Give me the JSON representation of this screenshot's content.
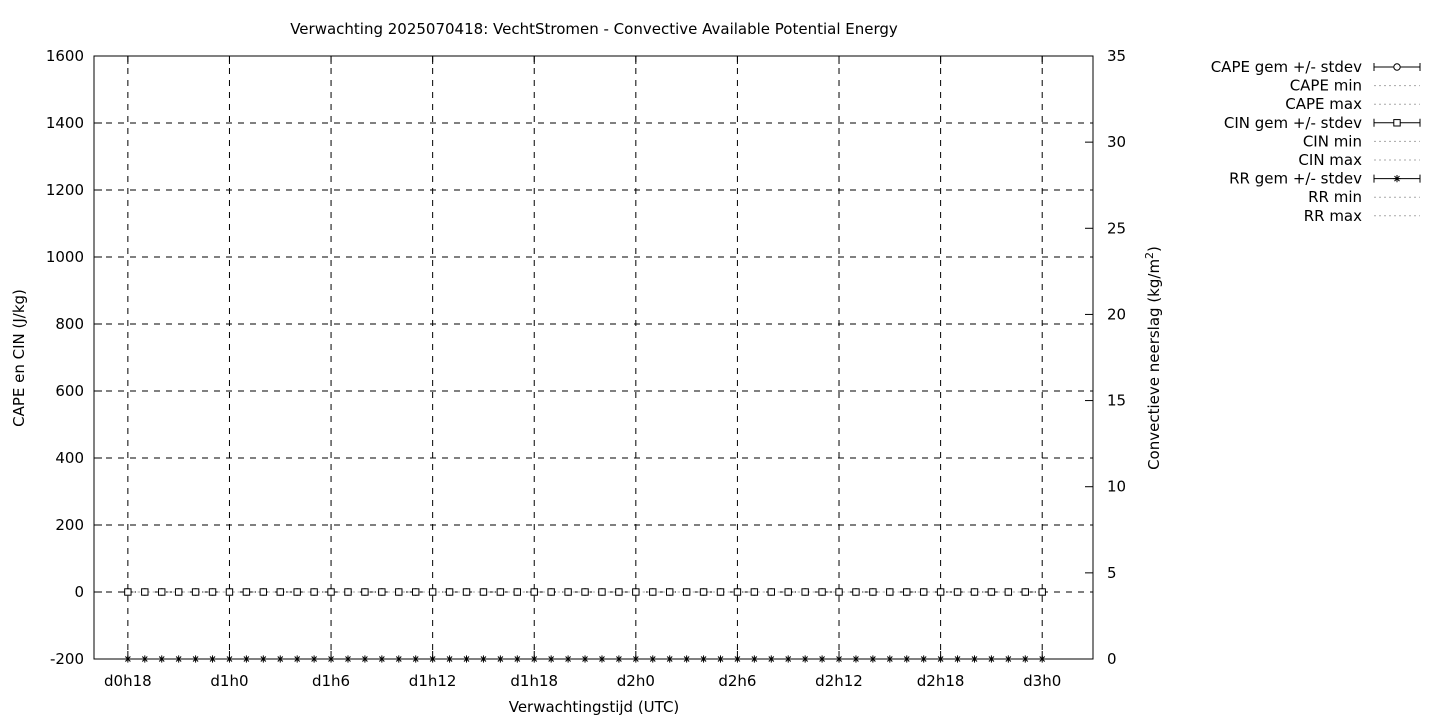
{
  "chart_data": {
    "type": "line",
    "title": "Verwachting 2025070418: VechtStromen - Convective Available Potential Energy",
    "xlabel": "Verwachtingstijd (UTC)",
    "ylabel": "CAPE en CIN (J/kg)",
    "y2label": "Convectieve neerslag (kg/m",
    "y2label_sup": "2",
    "y2label_end": ")",
    "x_ticks": [
      "d0h18",
      "d1h0",
      "d1h6",
      "d1h12",
      "d1h18",
      "d2h0",
      "d2h6",
      "d2h12",
      "d2h18",
      "d3h0"
    ],
    "x_range_hours": [
      -2,
      57
    ],
    "ylim": [
      -200,
      1600
    ],
    "y_ticks": [
      -200,
      0,
      200,
      400,
      600,
      800,
      1000,
      1200,
      1400,
      1600
    ],
    "y2lim": [
      0,
      35
    ],
    "y2_ticks": [
      0,
      5,
      10,
      15,
      20,
      25,
      30,
      35
    ],
    "grid": true,
    "legend_position": "top-right outside",
    "legend": [
      {
        "label": "CAPE gem +/- stdev",
        "marker": "circle",
        "errorbar": true
      },
      {
        "label": "CAPE min",
        "marker": "none",
        "errorbar": false
      },
      {
        "label": "CAPE max",
        "marker": "none",
        "errorbar": false
      },
      {
        "label": "CIN gem +/- stdev",
        "marker": "square",
        "errorbar": true
      },
      {
        "label": "CIN min",
        "marker": "none",
        "errorbar": false
      },
      {
        "label": "CIN max",
        "marker": "none",
        "errorbar": false
      },
      {
        "label": "RR gem +/- stdev",
        "marker": "star",
        "errorbar": true
      },
      {
        "label": "RR min",
        "marker": "none",
        "errorbar": false
      },
      {
        "label": "RR max",
        "marker": "none",
        "errorbar": false
      }
    ],
    "colors": {
      "data": "#000000",
      "envelope": "#a8a8a8"
    },
    "x_hours": [
      0,
      1,
      2,
      3,
      4,
      5,
      6,
      7,
      8,
      9,
      10,
      11,
      12,
      13,
      14,
      15,
      16,
      17,
      18,
      19,
      20,
      21,
      22,
      23,
      24,
      25,
      26,
      27,
      28,
      29,
      30,
      31,
      32,
      33,
      34,
      35,
      36,
      37,
      38,
      39,
      40,
      41,
      42,
      43,
      44,
      45,
      46,
      47,
      48,
      49,
      50,
      51,
      52,
      53,
      54
    ],
    "series": [
      {
        "name": "CAPE gem +/- stdev",
        "axis": "y",
        "mean": [
          0,
          0,
          0,
          0,
          0,
          0,
          0,
          0,
          0,
          0,
          0,
          0,
          0,
          0,
          0,
          0,
          0,
          0,
          0,
          0,
          0,
          0,
          0,
          0,
          0,
          0,
          0,
          0,
          0,
          0,
          0,
          0,
          0,
          0,
          0,
          0,
          0,
          0,
          0,
          0,
          0,
          0,
          0,
          0,
          0,
          0,
          0,
          0,
          0,
          0,
          0,
          0,
          0,
          0,
          0
        ],
        "stdev": [
          0,
          0,
          0,
          0,
          0,
          0,
          0,
          0,
          0,
          0,
          0,
          0,
          0,
          0,
          0,
          0,
          0,
          0,
          0,
          0,
          0,
          0,
          0,
          0,
          0,
          0,
          0,
          0,
          0,
          0,
          0,
          0,
          0,
          0,
          0,
          0,
          0,
          0,
          0,
          0,
          0,
          0,
          0,
          0,
          0,
          0,
          0,
          0,
          0,
          0,
          0,
          0,
          0,
          0,
          0
        ]
      }
    ],
    "cape_mean": [
      0,
      0,
      0,
      0,
      0,
      0,
      0,
      0,
      0,
      0,
      0,
      0,
      0,
      0,
      0,
      0,
      0,
      0,
      0,
      0,
      0,
      0,
      0,
      0,
      0,
      0,
      0,
      0,
      0,
      0,
      0,
      0,
      0,
      0,
      0,
      0,
      0,
      0,
      0,
      0,
      0,
      0,
      0,
      0,
      0,
      0,
      0,
      0,
      0,
      0,
      0,
      0,
      0,
      0,
      0
    ],
    "cape_stdev": [
      0,
      0,
      0,
      0,
      0,
      0,
      0,
      0,
      0,
      0,
      0,
      0,
      0,
      0,
      0,
      0,
      0,
      0,
      0,
      0,
      0,
      0,
      0,
      0,
      0,
      0,
      0,
      0,
      0,
      0,
      0,
      0,
      0,
      0,
      0,
      0,
      0,
      0,
      0,
      0,
      0,
      0,
      0,
      0,
      0,
      0,
      0,
      0,
      0,
      0,
      0,
      0,
      0,
      0,
      0
    ],
    "cape_min": [
      0,
      0,
      0,
      0,
      0,
      0,
      0,
      0,
      0,
      0,
      0,
      0,
      0,
      0,
      0,
      0,
      0,
      0,
      0,
      0,
      0,
      0,
      0,
      0,
      0,
      0,
      0,
      0,
      0,
      0,
      0,
      0,
      0,
      0,
      0,
      0,
      0,
      0,
      0,
      0,
      0,
      0,
      0,
      0,
      0,
      0,
      0,
      0,
      0,
      0,
      0,
      0,
      0,
      0,
      0
    ],
    "cape_max": [
      0,
      0,
      0,
      0,
      0,
      0,
      0,
      0,
      0,
      0,
      0,
      0,
      0,
      0,
      0,
      0,
      0,
      0,
      0,
      0,
      0,
      0,
      0,
      0,
      0,
      0,
      0,
      0,
      0,
      0,
      0,
      0,
      0,
      0,
      0,
      0,
      0,
      0,
      0,
      0,
      0,
      0,
      0,
      0,
      0,
      0,
      0,
      0,
      0,
      0,
      0,
      0,
      0,
      0,
      0
    ],
    "cin_mean": [
      0,
      0,
      0,
      0,
      0,
      0,
      0,
      0,
      0,
      0,
      0,
      0,
      0,
      0,
      0,
      0,
      0,
      0,
      0,
      0,
      0,
      0,
      0,
      0,
      0,
      0,
      0,
      0,
      0,
      0,
      0,
      0,
      0,
      0,
      0,
      0,
      0,
      0,
      0,
      0,
      0,
      0,
      0,
      0,
      0,
      0,
      0,
      0,
      0,
      0,
      0,
      0,
      0,
      0,
      0
    ],
    "cin_stdev": [
      0,
      0,
      0,
      0,
      0,
      0,
      0,
      0,
      0,
      0,
      0,
      0,
      0,
      0,
      0,
      0,
      0,
      0,
      0,
      0,
      0,
      0,
      0,
      0,
      0,
      0,
      0,
      0,
      0,
      0,
      0,
      0,
      0,
      0,
      0,
      0,
      0,
      0,
      0,
      0,
      0,
      0,
      0,
      0,
      0,
      0,
      0,
      0,
      0,
      0,
      0,
      0,
      0,
      0,
      0
    ],
    "cin_min": [
      0,
      0,
      0,
      0,
      0,
      0,
      0,
      0,
      0,
      0,
      0,
      0,
      0,
      0,
      0,
      0,
      0,
      0,
      0,
      0,
      0,
      0,
      0,
      0,
      0,
      0,
      0,
      0,
      0,
      0,
      0,
      0,
      0,
      0,
      0,
      0,
      0,
      0,
      0,
      0,
      0,
      0,
      0,
      0,
      0,
      0,
      0,
      0,
      0,
      0,
      0,
      0,
      0,
      0,
      0
    ],
    "rr_mean": [
      0,
      0,
      0,
      0,
      0,
      0,
      0,
      0,
      0,
      0,
      0,
      0,
      0,
      0,
      0,
      0,
      0,
      0,
      0,
      0,
      0,
      0,
      0,
      0,
      0,
      0,
      0,
      0,
      0,
      0,
      0,
      0,
      0,
      0,
      0,
      0,
      0,
      0,
      0,
      0,
      0,
      0,
      0,
      0,
      0,
      0,
      0,
      0,
      0,
      0,
      0,
      0,
      0,
      0,
      0
    ],
    "rr_stdev": [
      0,
      0,
      0,
      0,
      0,
      0,
      0,
      0,
      0,
      0,
      0,
      0,
      0,
      0,
      0,
      0,
      0,
      0,
      0,
      0,
      0,
      0,
      0,
      0,
      0,
      0,
      0,
      0,
      0,
      0,
      0,
      0,
      0,
      0,
      0,
      0,
      0,
      0,
      0,
      0,
      0,
      0,
      0,
      0,
      0,
      0,
      0,
      0,
      0,
      0,
      0,
      0,
      0,
      0,
      0
    ],
    "rr_min": [
      0,
      0,
      0,
      0,
      0,
      0,
      0,
      0,
      0,
      0,
      0,
      0,
      0,
      0,
      0,
      0,
      0,
      0,
      0,
      0,
      0,
      0,
      0,
      0,
      0,
      0,
      0,
      0,
      0,
      0,
      0,
      0,
      0,
      0,
      0,
      0,
      0,
      0,
      0,
      0,
      0,
      0,
      0,
      0,
      0,
      0,
      0,
      0,
      0,
      0,
      0,
      0,
      0,
      0,
      0
    ],
    "rr_max": [
      0,
      0,
      0,
      0,
      0,
      0,
      0,
      0,
      0,
      0,
      0,
      0,
      0,
      0,
      0,
      0,
      0,
      0,
      0,
      0,
      0,
      0,
      0,
      0,
      0,
      0,
      0,
      0,
      0,
      0,
      0,
      0,
      0,
      0,
      0,
      0,
      0,
      0,
      0,
      0,
      0,
      0,
      0,
      0,
      0,
      0,
      0,
      0,
      0,
      0,
      0,
      0,
      0,
      0,
      0
    ]
  }
}
